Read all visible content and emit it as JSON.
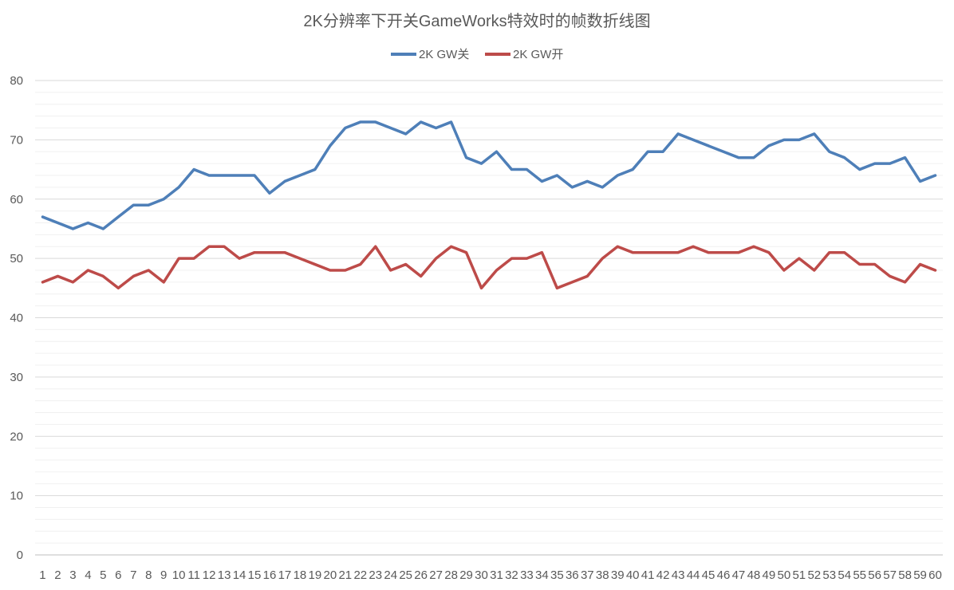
{
  "chart_data": {
    "type": "line",
    "title": "2K分辨率下开关GameWorks特效时的帧数折线图",
    "xlabel": "",
    "ylabel": "",
    "ylim": [
      0,
      80
    ],
    "yticks": [
      0,
      10,
      20,
      30,
      40,
      50,
      60,
      70,
      80
    ],
    "grid": true,
    "minor_grid": true,
    "legend_position": "top",
    "categories": [
      "1",
      "2",
      "3",
      "4",
      "5",
      "6",
      "7",
      "8",
      "9",
      "10",
      "11",
      "12",
      "13",
      "14",
      "15",
      "16",
      "17",
      "18",
      "19",
      "20",
      "21",
      "22",
      "23",
      "24",
      "25",
      "26",
      "27",
      "28",
      "29",
      "30",
      "31",
      "32",
      "33",
      "34",
      "35",
      "36",
      "37",
      "38",
      "39",
      "40",
      "41",
      "42",
      "43",
      "44",
      "45",
      "46",
      "47",
      "48",
      "49",
      "50",
      "51",
      "52",
      "53",
      "54",
      "55",
      "56",
      "57",
      "58",
      "59",
      "60"
    ],
    "series": [
      {
        "name": "2K GW关",
        "color": "#4e7fb8",
        "values": [
          57,
          56,
          55,
          56,
          55,
          57,
          59,
          59,
          60,
          62,
          65,
          64,
          64,
          64,
          64,
          61,
          63,
          64,
          65,
          69,
          72,
          73,
          73,
          72,
          71,
          73,
          72,
          73,
          67,
          66,
          68,
          65,
          65,
          63,
          64,
          62,
          63,
          62,
          64,
          65,
          68,
          68,
          71,
          70,
          69,
          68,
          67,
          67,
          69,
          70,
          70,
          71,
          68,
          67,
          65,
          66,
          66,
          67,
          63,
          64
        ]
      },
      {
        "name": "2K GW开",
        "color": "#bd4b49",
        "values": [
          46,
          47,
          46,
          48,
          47,
          45,
          47,
          48,
          46,
          50,
          50,
          52,
          52,
          50,
          51,
          51,
          51,
          50,
          49,
          48,
          48,
          49,
          52,
          48,
          49,
          47,
          50,
          52,
          51,
          45,
          48,
          50,
          50,
          51,
          45,
          46,
          47,
          50,
          52,
          51,
          51,
          51,
          51,
          52,
          51,
          51,
          51,
          52,
          51,
          48,
          50,
          48,
          51,
          51,
          49,
          49,
          47,
          46,
          49,
          48
        ]
      }
    ]
  }
}
